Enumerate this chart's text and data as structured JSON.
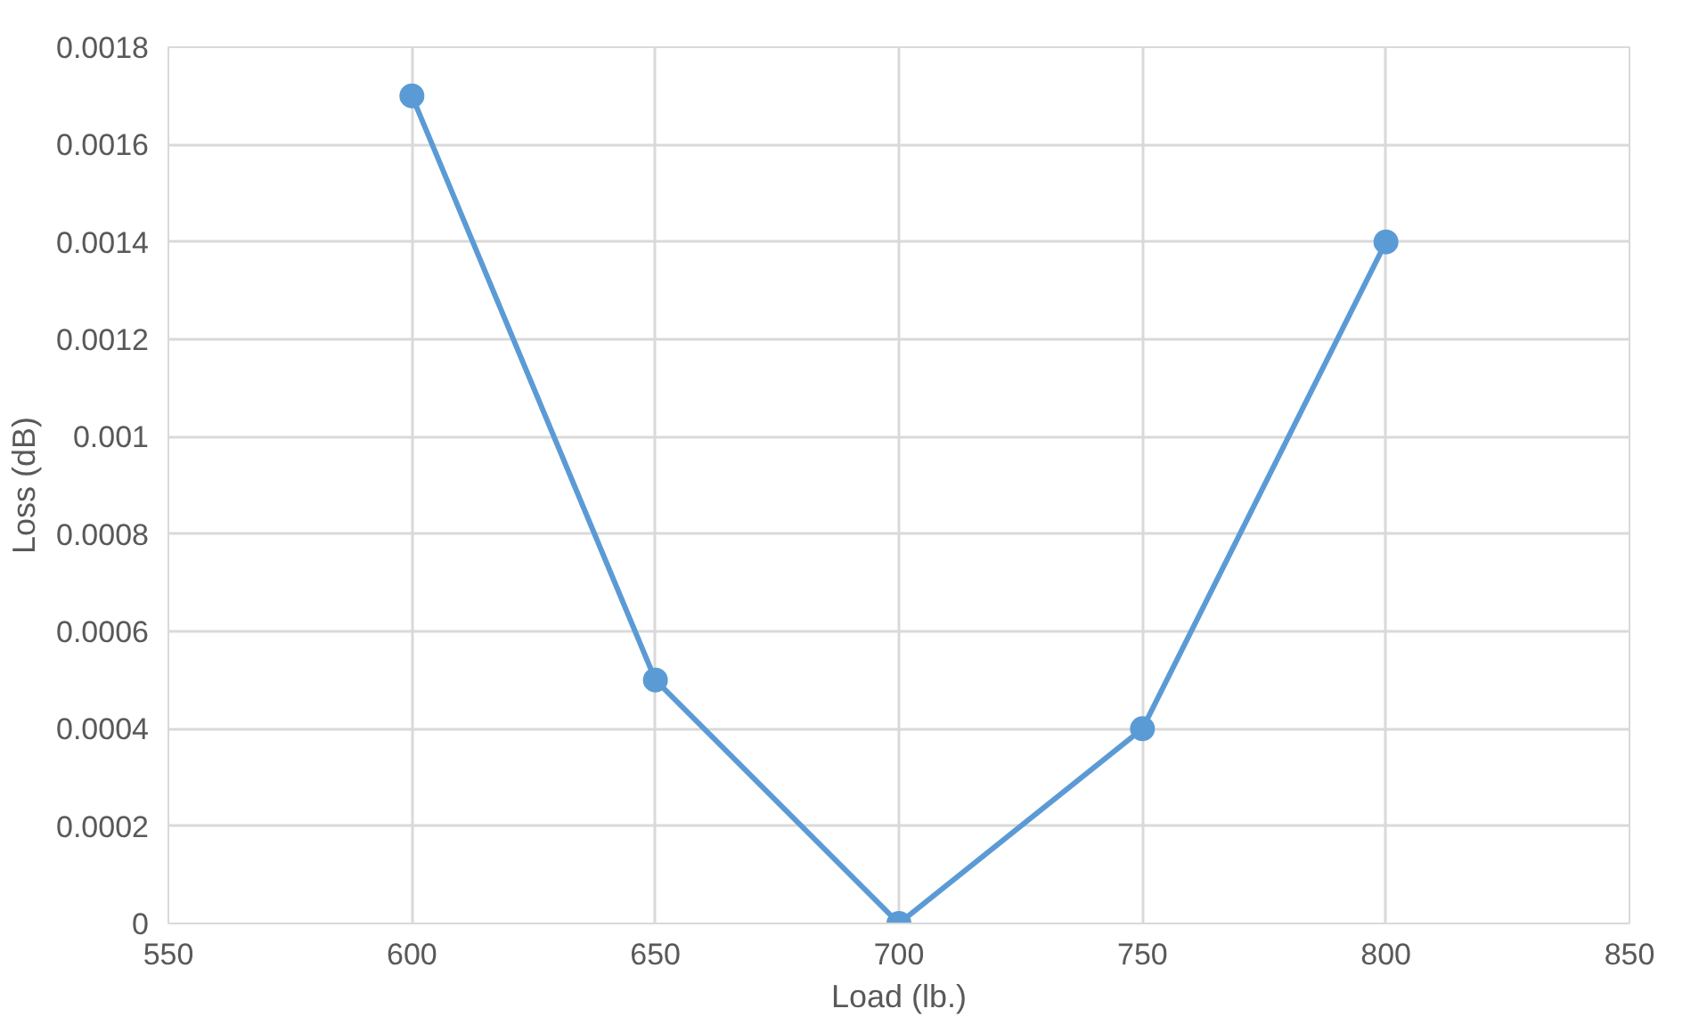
{
  "chart_data": {
    "type": "line",
    "xlabel": "Load (lb.)",
    "ylabel": "Loss (dB)",
    "x": [
      600,
      650,
      700,
      750,
      800
    ],
    "series": [
      {
        "color": "#5b9bd5",
        "values": [
          0.0017,
          0.0005,
          0,
          0.0004,
          0.0014
        ]
      }
    ],
    "xlim": [
      550,
      850
    ],
    "xticks": [
      550,
      600,
      650,
      700,
      750,
      800,
      850
    ],
    "ylim": [
      0,
      0.0018
    ],
    "yticks": [
      0,
      0.0002,
      0.0004,
      0.0006,
      0.0008,
      0.001,
      0.0012,
      0.0014,
      0.0016,
      0.0018
    ],
    "grid": true,
    "marker": "circle",
    "line_style": "solid"
  }
}
